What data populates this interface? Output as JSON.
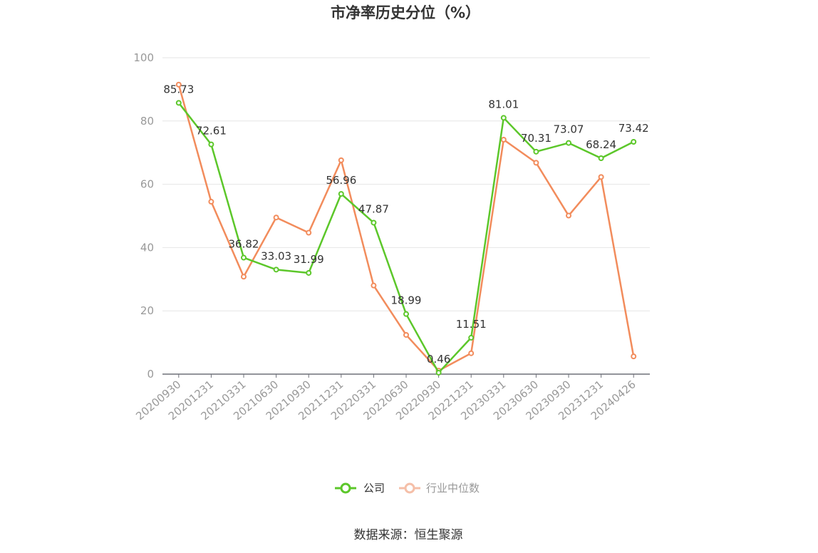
{
  "chart_data": {
    "type": "line",
    "title": "市净率历史分位（%）",
    "categories": [
      "20200930",
      "20201231",
      "20210331",
      "20210630",
      "20210930",
      "20211231",
      "20220331",
      "20220630",
      "20220930",
      "20221231",
      "20230331",
      "20230630",
      "20230930",
      "20231231",
      "20240426"
    ],
    "series": [
      {
        "name": "公司",
        "color": "#5cc72a",
        "values": [
          85.73,
          72.61,
          36.82,
          33.03,
          31.99,
          56.96,
          47.87,
          18.99,
          0.46,
          11.51,
          81.01,
          70.31,
          73.07,
          68.24,
          73.42
        ],
        "labels": [
          "85.73",
          "72.61",
          "36.82",
          "33.03",
          "31.99",
          "56.96",
          "47.87",
          "18.99",
          "0.46",
          "11.51",
          "81.01",
          "70.31",
          "73.07",
          "68.24",
          "73.42"
        ]
      },
      {
        "name": "行业中位数",
        "color": "#f28c5c",
        "values": [
          91.5,
          54.5,
          30.8,
          49.5,
          44.7,
          67.6,
          28.0,
          12.4,
          1.1,
          6.6,
          74.1,
          66.8,
          50.1,
          62.3,
          5.6
        ]
      }
    ],
    "yticks": [
      0,
      20,
      40,
      60,
      80,
      100
    ],
    "ylim": [
      0,
      100
    ],
    "grid": true,
    "legend": "bottom-center",
    "legend_inactive_color": "#f5bfa8"
  },
  "footer": {
    "source": "数据来源：恒生聚源"
  }
}
